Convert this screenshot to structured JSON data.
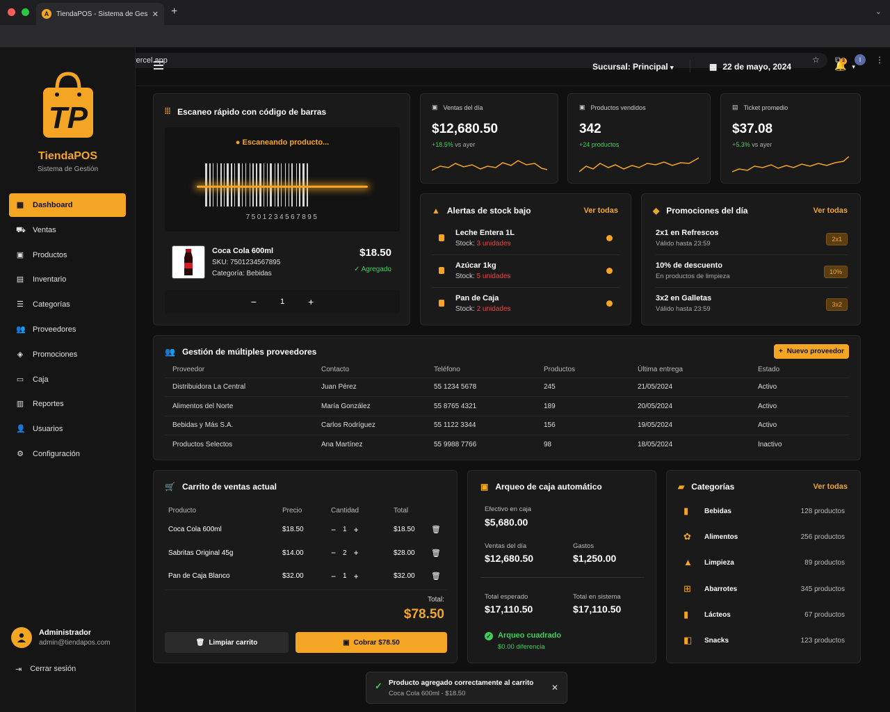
{
  "browser": {
    "tab_title": "TiendaPOS - Sistema de Gestión",
    "tab_icon_letter": "A",
    "url": "tiendapos-app.vercel.app",
    "profile_initial": "I"
  },
  "sidebar": {
    "brand": "TiendaPOS",
    "subtitle": "Sistema de Gestión",
    "items": [
      {
        "label": "Dashboard",
        "icon": "grid-icon"
      },
      {
        "label": "Ventas",
        "icon": "cart-icon"
      },
      {
        "label": "Productos",
        "icon": "box-icon"
      },
      {
        "label": "Inventario",
        "icon": "inventory-icon"
      },
      {
        "label": "Categorías",
        "icon": "list-icon"
      },
      {
        "label": "Proveedores",
        "icon": "users-icon"
      },
      {
        "label": "Promociones",
        "icon": "tag-icon"
      },
      {
        "label": "Caja",
        "icon": "register-icon"
      },
      {
        "label": "Reportes",
        "icon": "report-icon"
      },
      {
        "label": "Usuarios",
        "icon": "user-icon"
      },
      {
        "label": "Configuración",
        "icon": "gear-icon"
      }
    ],
    "user": {
      "name": "Administrador",
      "email": "admin@tiendapos.com"
    },
    "logout": "Cerrar sesión"
  },
  "header": {
    "branch": "Sucursal: Principal",
    "date": "22 de mayo, 2024",
    "notif_count": "3"
  },
  "scanner": {
    "title": "Escaneo rápido con código de barras",
    "status": "Escaneando producto...",
    "barcode": "7501234567895",
    "product_name": "Coca Cola 600ml",
    "sku": "SKU: 7501234567895",
    "category": "Categoría: Bebidas",
    "price": "$18.50",
    "added": "✓ Agregado",
    "qty": "1"
  },
  "kpis": [
    {
      "label": "Ventas del día",
      "value": "$12,680.50",
      "delta": "+18.5%",
      "delta_suffix": " vs ayer"
    },
    {
      "label": "Productos vendidos",
      "value": "342",
      "delta": "+24 productos",
      "delta_suffix": ""
    },
    {
      "label": "Ticket promedio",
      "value": "$37.08",
      "delta": "+5.3%",
      "delta_suffix": " vs ayer"
    }
  ],
  "alerts": {
    "title": "Alertas de stock bajo",
    "link": "Ver todas",
    "items": [
      {
        "name": "Leche Entera 1L",
        "stock_label": "Stock: ",
        "stock": "3 unidades"
      },
      {
        "name": "Azúcar 1kg",
        "stock_label": "Stock: ",
        "stock": "5 unidades"
      },
      {
        "name": "Pan de Caja",
        "stock_label": "Stock: ",
        "stock": "2 unidades"
      }
    ]
  },
  "promos": {
    "title": "Promociones del día",
    "link": "Ver todas",
    "items": [
      {
        "name": "2x1 en Refrescos",
        "sub": "Válido hasta 23:59",
        "badge": "2x1"
      },
      {
        "name": "10% de descuento",
        "sub": "En productos de limpieza",
        "badge": "10%"
      },
      {
        "name": "3x2 en Galletas",
        "sub": "Válido hasta 23:59",
        "badge": "3x2"
      }
    ]
  },
  "suppliers": {
    "title": "Gestión de múltiples proveedores",
    "new_button": "Nuevo proveedor",
    "columns": [
      "Proveedor",
      "Contacto",
      "Teléfono",
      "Productos",
      "Última entrega",
      "Estado"
    ],
    "rows": [
      [
        "Distribuidora La Central",
        "Juan Pérez",
        "55 1234 5678",
        "245",
        "21/05/2024",
        "Activo"
      ],
      [
        "Alimentos del Norte",
        "María González",
        "55 8765 4321",
        "189",
        "20/05/2024",
        "Activo"
      ],
      [
        "Bebidas y Más S.A.",
        "Carlos Rodríguez",
        "55 1122 3344",
        "156",
        "19/05/2024",
        "Activo"
      ],
      [
        "Productos Selectos",
        "Ana Martínez",
        "55 9988 7766",
        "98",
        "18/05/2024",
        "Inactivo"
      ]
    ]
  },
  "cart": {
    "title": "Carrito de ventas actual",
    "columns": [
      "Producto",
      "Precio",
      "Cantidad",
      "Total"
    ],
    "rows": [
      {
        "product": "Coca Cola 600ml",
        "price": "$18.50",
        "qty": "1",
        "total": "$18.50"
      },
      {
        "product": "Sabritas Original 45g",
        "price": "$14.00",
        "qty": "2",
        "total": "$28.00"
      },
      {
        "product": "Pan de Caja Blanco",
        "price": "$32.00",
        "qty": "1",
        "total": "$32.00"
      }
    ],
    "total_label": "Total:",
    "total": "$78.50",
    "clear_button": "Limpiar carrito",
    "charge_button": "Cobrar $78.50"
  },
  "cash": {
    "title": "Arqueo de caja automático",
    "cash_label": "Efectivo en caja",
    "cash": "$5,680.00",
    "sales_label": "Ventas del día",
    "sales": "$12,680.50",
    "expenses_label": "Gastos",
    "expenses": "$1,250.00",
    "expected_label": "Total esperado",
    "expected": "$17,110.50",
    "system_label": "Total en sistema",
    "system": "$17,110.50",
    "status": "Arqueo cuadrado",
    "diff": "$0.00 diferencia"
  },
  "categories": {
    "title": "Categorías",
    "link": "Ver todas",
    "items": [
      {
        "name": "Bebidas",
        "count": "128 productos"
      },
      {
        "name": "Alimentos",
        "count": "256 productos"
      },
      {
        "name": "Limpieza",
        "count": "89 productos"
      },
      {
        "name": "Abarrotes",
        "count": "345 productos"
      },
      {
        "name": "Lácteos",
        "count": "67 productos"
      },
      {
        "name": "Snacks",
        "count": "123 productos"
      }
    ]
  },
  "toast": {
    "title": "Producto agregado correctamente al carrito",
    "sub": "Coca Cola 600ml - $18.50"
  }
}
